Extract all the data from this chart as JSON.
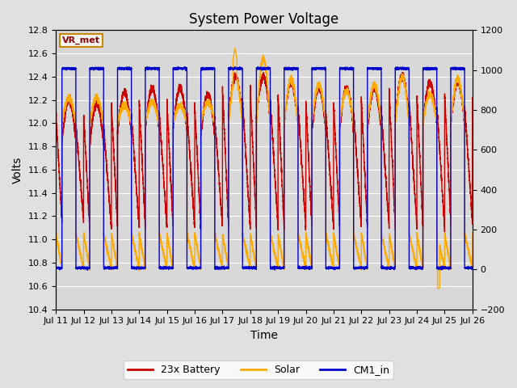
{
  "title": "System Power Voltage",
  "xlabel": "Time",
  "ylabel": "Volts",
  "ylim_left": [
    10.4,
    12.8
  ],
  "ylim_right": [
    -200,
    1200
  ],
  "yticks_left": [
    10.4,
    10.6,
    10.8,
    11.0,
    11.2,
    11.4,
    11.6,
    11.8,
    12.0,
    12.2,
    12.4,
    12.6,
    12.8
  ],
  "yticks_right": [
    -200,
    0,
    200,
    400,
    600,
    800,
    1000,
    1200
  ],
  "xtick_labels": [
    "Jul 11",
    "Jul 12",
    "Jul 13",
    "Jul 14",
    "Jul 15",
    "Jul 16",
    "Jul 17",
    "Jul 18",
    "Jul 19",
    "Jul 20",
    "Jul 21",
    "Jul 22",
    "Jul 23",
    "Jul 24",
    "Jul 25",
    "Jul 26"
  ],
  "fig_bg_color": "#e0e0e0",
  "plot_bg_color": "#d8d8d8",
  "grid_color": "#ffffff",
  "line_battery_color": "#cc0000",
  "line_solar_color": "#ffaa00",
  "line_cm1_color": "#0000cc",
  "legend_label_vr": "VR_met",
  "legend_label_battery": "23x Battery",
  "legend_label_solar": "Solar",
  "legend_label_cm1": "CM1_in",
  "title_fontsize": 12,
  "axis_label_fontsize": 10,
  "tick_fontsize": 8,
  "line_width": 1.0
}
